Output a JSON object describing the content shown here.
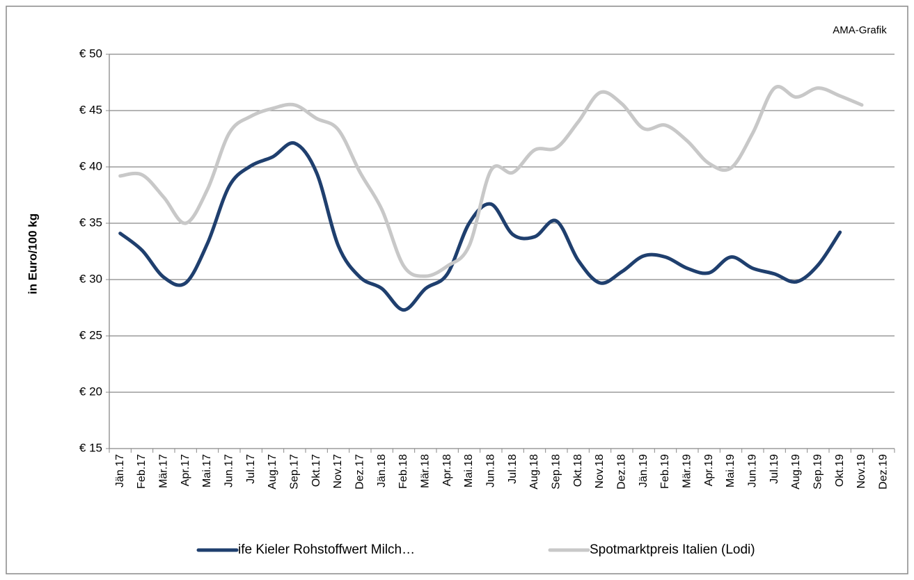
{
  "chart_data": {
    "type": "line",
    "annotation": "AMA-Grafik",
    "ylabel": "in Euro/100 kg",
    "categories": [
      "Jän.17",
      "Feb.17",
      "Mär.17",
      "Apr.17",
      "Mai.17",
      "Jun.17",
      "Jul.17",
      "Aug.17",
      "Sep.17",
      "Okt.17",
      "Nov.17",
      "Dez.17",
      "Jän.18",
      "Feb.18",
      "Mär.18",
      "Apr.18",
      "Mai.18",
      "Jun.18",
      "Jul.18",
      "Aug.18",
      "Sep.18",
      "Okt.18",
      "Nov.18",
      "Dez.18",
      "Jän.19",
      "Feb.19",
      "Mär.19",
      "Apr.19",
      "Mai.19",
      "Jun.19",
      "Jul.19",
      "Aug.19",
      "Sep.19",
      "Okt.19",
      "Nov.19",
      "Dez.19"
    ],
    "series": [
      {
        "name": "ife Kieler Rohstoffwert Milch…",
        "color": "#1f3f6e",
        "values": [
          34.1,
          32.6,
          30.2,
          29.7,
          33.2,
          38.3,
          40.1,
          40.9,
          42.1,
          39.5,
          33.0,
          30.2,
          29.2,
          27.3,
          29.2,
          30.5,
          35.0,
          36.7,
          34.0,
          33.8,
          35.2,
          31.7,
          29.7,
          30.7,
          32.1,
          32.0,
          31.0,
          30.6,
          32.0,
          31.0,
          30.5,
          29.8,
          31.3,
          34.2,
          null,
          null
        ]
      },
      {
        "name": "Spotmarktpreis Italien (Lodi)",
        "color": "#c8c8c8",
        "values": [
          39.2,
          39.3,
          37.3,
          35.0,
          38.0,
          43.0,
          44.5,
          45.2,
          45.5,
          44.3,
          43.3,
          39.5,
          36.2,
          31.2,
          30.3,
          31.2,
          33.0,
          39.7,
          39.5,
          41.5,
          41.7,
          44.0,
          46.6,
          45.6,
          43.4,
          43.7,
          42.3,
          40.3,
          39.9,
          43.0,
          47.0,
          46.2,
          47.0,
          46.3,
          45.5,
          null
        ]
      }
    ],
    "ylim": [
      15,
      50
    ],
    "yticks": [
      {
        "value": 15,
        "label": "€ 15"
      },
      {
        "value": 20,
        "label": "€ 20"
      },
      {
        "value": 25,
        "label": "€ 25"
      },
      {
        "value": 30,
        "label": "€ 30"
      },
      {
        "value": 35,
        "label": "€ 35"
      },
      {
        "value": 40,
        "label": "€ 40"
      },
      {
        "value": 45,
        "label": "€ 45"
      },
      {
        "value": 50,
        "label": "€ 50"
      }
    ],
    "grid": true,
    "legend": "bottom"
  }
}
